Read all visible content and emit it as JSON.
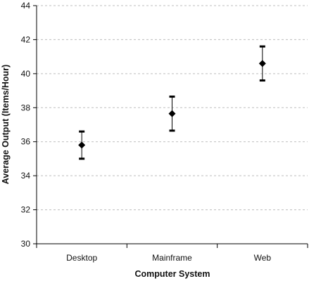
{
  "chart_data": {
    "type": "scatter",
    "title": "",
    "xlabel": "Computer System",
    "ylabel": "Average Output (Items/Hour)",
    "categories": [
      "Desktop",
      "Mainframe",
      "Web"
    ],
    "values": [
      35.8,
      37.65,
      40.6
    ],
    "error_low": [
      35.0,
      36.65,
      39.6
    ],
    "error_high": [
      36.6,
      38.65,
      41.6
    ],
    "ylim": [
      30,
      44
    ],
    "yticks": [
      30,
      32,
      34,
      36,
      38,
      40,
      42,
      44
    ],
    "ytick_labels": [
      "30",
      "32",
      "34",
      "36",
      "38",
      "40",
      "42",
      "44"
    ],
    "grid": "horizontal dashed",
    "legend": "none",
    "marker": "diamond",
    "colors": {
      "marker": "#000000",
      "grid": "#bdbdbd",
      "axis": "#000000"
    }
  }
}
